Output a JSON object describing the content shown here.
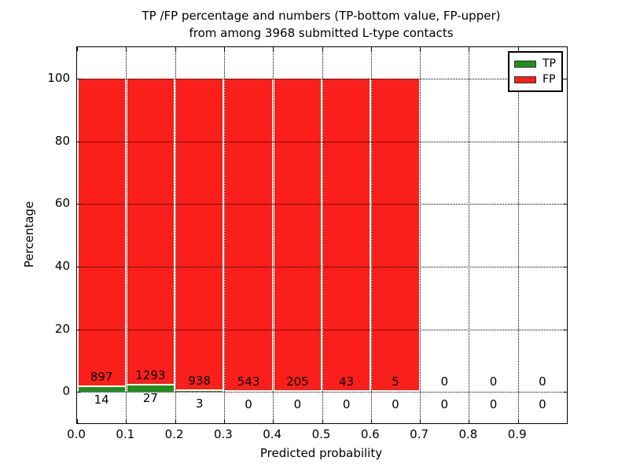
{
  "title": {
    "line1": "TP /FP percentage and numbers (TP-bottom value, FP-upper)",
    "line2": "from among 3968 submitted L-type contacts"
  },
  "x_axis": {
    "label": "Predicted probability",
    "tick_labels": [
      "0.0",
      "0.1",
      "0.2",
      "0.3",
      "0.4",
      "0.5",
      "0.6",
      "0.7",
      "0.8",
      "0.9"
    ],
    "tick_values": [
      0.0,
      0.1,
      0.2,
      0.3,
      0.4,
      0.5,
      0.6,
      0.7,
      0.8,
      0.9
    ],
    "lim": [
      0,
      1.0
    ]
  },
  "y_axis": {
    "label": "Percentage",
    "tick_labels": [
      "0",
      "20",
      "40",
      "60",
      "80",
      "100"
    ],
    "tick_values": [
      0,
      20,
      40,
      60,
      80,
      100
    ],
    "lim": [
      -10,
      110
    ]
  },
  "legend": {
    "items": [
      {
        "label": "TP",
        "color": "#1f8f1f"
      },
      {
        "label": "FP",
        "color": "#fa1f1a"
      }
    ],
    "position": "upper right"
  },
  "colors": {
    "tp": "#1f8f1f",
    "fp": "#fa1f1a",
    "grid": "#000000",
    "background": "#ffffff"
  },
  "chart_data": {
    "type": "bar",
    "stacked": true,
    "title": "TP /FP percentage and numbers (TP-bottom value, FP-upper) from among 3968 submitted L-type contacts",
    "xlabel": "Predicted probability",
    "ylabel": "Percentage",
    "total_contacts": 3968,
    "bin_width": 0.1,
    "bin_starts": [
      0.0,
      0.1,
      0.2,
      0.3,
      0.4,
      0.5,
      0.6,
      0.7,
      0.8,
      0.9
    ],
    "categories": [
      "0.0-0.1",
      "0.1-0.2",
      "0.2-0.3",
      "0.3-0.4",
      "0.4-0.5",
      "0.5-0.6",
      "0.6-0.7",
      "0.7-0.8",
      "0.8-0.9",
      "0.9-1.0"
    ],
    "series": [
      {
        "name": "TP",
        "color": "#1f8f1f",
        "counts": [
          14,
          27,
          3,
          0,
          0,
          0,
          0,
          0,
          0,
          0
        ]
      },
      {
        "name": "FP",
        "color": "#fa1f1a",
        "counts": [
          897,
          1293,
          938,
          543,
          205,
          43,
          5,
          0,
          0,
          0
        ]
      }
    ],
    "percent_stack_total": 100,
    "grid": "dotted",
    "legend_position": "upper right",
    "xlim": [
      0,
      1.0
    ],
    "ylim": [
      -10,
      110
    ]
  }
}
